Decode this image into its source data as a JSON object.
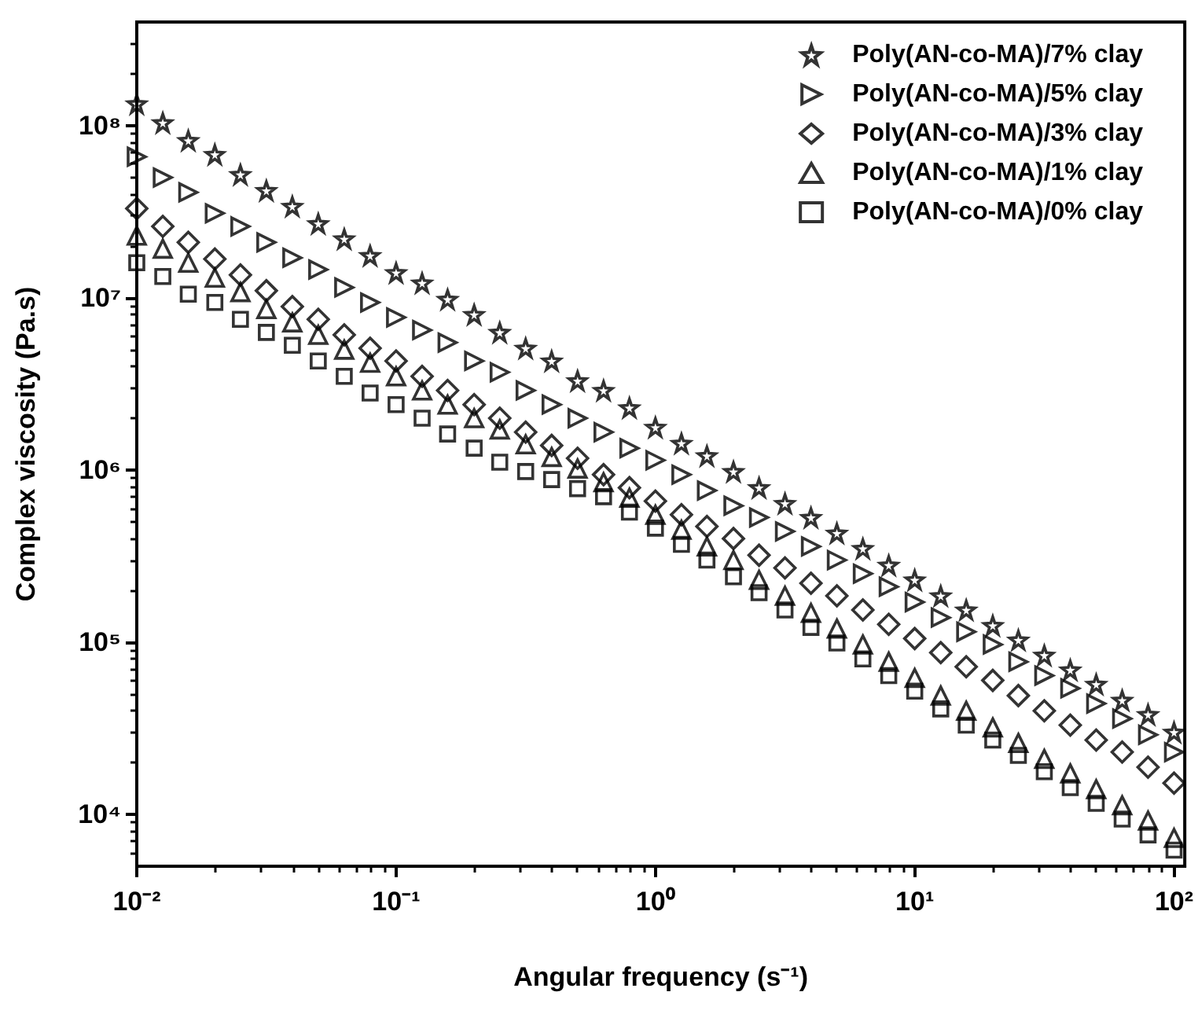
{
  "chart_data": {
    "type": "scatter",
    "xlabel": "Angular frequency (s⁻¹)",
    "ylabel": "Complex viscosity (Pa.s)",
    "log": "xy",
    "grid": false,
    "legend": "top right",
    "xlim": [
      0.01,
      110
    ],
    "ylim": [
      5000,
      400000000
    ],
    "xticks": [
      {
        "value": 0.01,
        "label": "10⁻²"
      },
      {
        "value": 0.1,
        "label": "10⁻¹"
      },
      {
        "value": 1,
        "label": "10⁰"
      },
      {
        "value": 10,
        "label": "10¹"
      },
      {
        "value": 100,
        "label": "10²"
      }
    ],
    "yticks": [
      {
        "value": 10000,
        "label": "10⁴"
      },
      {
        "value": 100000,
        "label": "10⁵"
      },
      {
        "value": 1000000,
        "label": "10⁶"
      },
      {
        "value": 10000000,
        "label": "10⁷"
      },
      {
        "value": 100000000,
        "label": "10⁸"
      }
    ],
    "x": [
      0.01,
      0.0126,
      0.0158,
      0.02,
      0.0251,
      0.0316,
      0.0398,
      0.0501,
      0.0631,
      0.0794,
      0.1,
      0.126,
      0.158,
      0.2,
      0.251,
      0.316,
      0.398,
      0.501,
      0.631,
      0.794,
      1,
      1.26,
      1.58,
      2,
      2.51,
      3.16,
      3.98,
      5.01,
      6.31,
      7.94,
      10,
      12.6,
      15.8,
      20,
      25.1,
      31.6,
      39.8,
      50.1,
      63.1,
      79.4,
      100
    ],
    "series": [
      {
        "name": "Poly(AN-co-MA)/7% clay",
        "color": "#000000",
        "marker": "star",
        "values": [
          134000000,
          104000000,
          82000000,
          68000000,
          52000000,
          42000000,
          34000000,
          27000000,
          22000000,
          17600000,
          14000000,
          12200000,
          9800000,
          8000000,
          6300000,
          5100000,
          4300000,
          3300000,
          2900000,
          2300000,
          1770000,
          1430000,
          1210000,
          980000,
          790000,
          640000,
          530000,
          430000,
          350000,
          280000,
          230000,
          186000,
          154000,
          125000,
          103000,
          84000,
          69000,
          57000,
          46000,
          38000,
          30000
        ]
      },
      {
        "name": "Poly(AN-co-MA)/5% clay",
        "color": "#000000",
        "marker": "triangle-right",
        "values": [
          66000000,
          50000000,
          41000000,
          31000000,
          26000000,
          21000000,
          17100000,
          14600000,
          11500000,
          9400000,
          7700000,
          6500000,
          5500000,
          4300000,
          3700000,
          2900000,
          2400000,
          2000000,
          1660000,
          1340000,
          1140000,
          940000,
          760000,
          620000,
          530000,
          440000,
          360000,
          300000,
          250000,
          210000,
          171000,
          139000,
          115000,
          97000,
          77000,
          64000,
          54000,
          44000,
          36000,
          29000,
          23000
        ]
      },
      {
        "name": "Poly(AN-co-MA)/3% clay",
        "color": "#000000",
        "marker": "diamond",
        "values": [
          33000000,
          26000000,
          21000000,
          16800000,
          13600000,
          11000000,
          8900000,
          7500000,
          6100000,
          5100000,
          4300000,
          3500000,
          2900000,
          2400000,
          2000000,
          1660000,
          1390000,
          1170000,
          940000,
          790000,
          660000,
          550000,
          470000,
          400000,
          320000,
          270000,
          220000,
          186000,
          154000,
          127000,
          105000,
          87000,
          72000,
          60000,
          49000,
          40000,
          33000,
          27000,
          23000,
          18800,
          15200
        ]
      },
      {
        "name": "Poly(AN-co-MA)/1% clay",
        "color": "#000000",
        "marker": "triangle",
        "values": [
          23000000,
          19300000,
          16000000,
          13100000,
          10800000,
          8600000,
          7200000,
          6100000,
          5000000,
          4200000,
          3500000,
          2900000,
          2400000,
          2000000,
          1720000,
          1410000,
          1190000,
          1020000,
          850000,
          690000,
          550000,
          450000,
          360000,
          300000,
          230000,
          186000,
          148000,
          120000,
          97000,
          77000,
          62000,
          49000,
          40000,
          32000,
          26000,
          21000,
          17300,
          14000,
          11300,
          9200,
          7300
        ]
      },
      {
        "name": "Poly(AN-co-MA)/0% clay",
        "color": "#000000",
        "marker": "square",
        "values": [
          16000000,
          13300000,
          10500000,
          9400000,
          7500000,
          6300000,
          5300000,
          4300000,
          3500000,
          2800000,
          2400000,
          2000000,
          1620000,
          1340000,
          1110000,
          980000,
          880000,
          780000,
          700000,
          570000,
          460000,
          370000,
          300000,
          240000,
          194000,
          154000,
          122000,
          99000,
          80000,
          64000,
          52000,
          41000,
          33000,
          27000,
          22000,
          17700,
          14300,
          11600,
          9400,
          7600,
          6200
        ]
      }
    ]
  }
}
